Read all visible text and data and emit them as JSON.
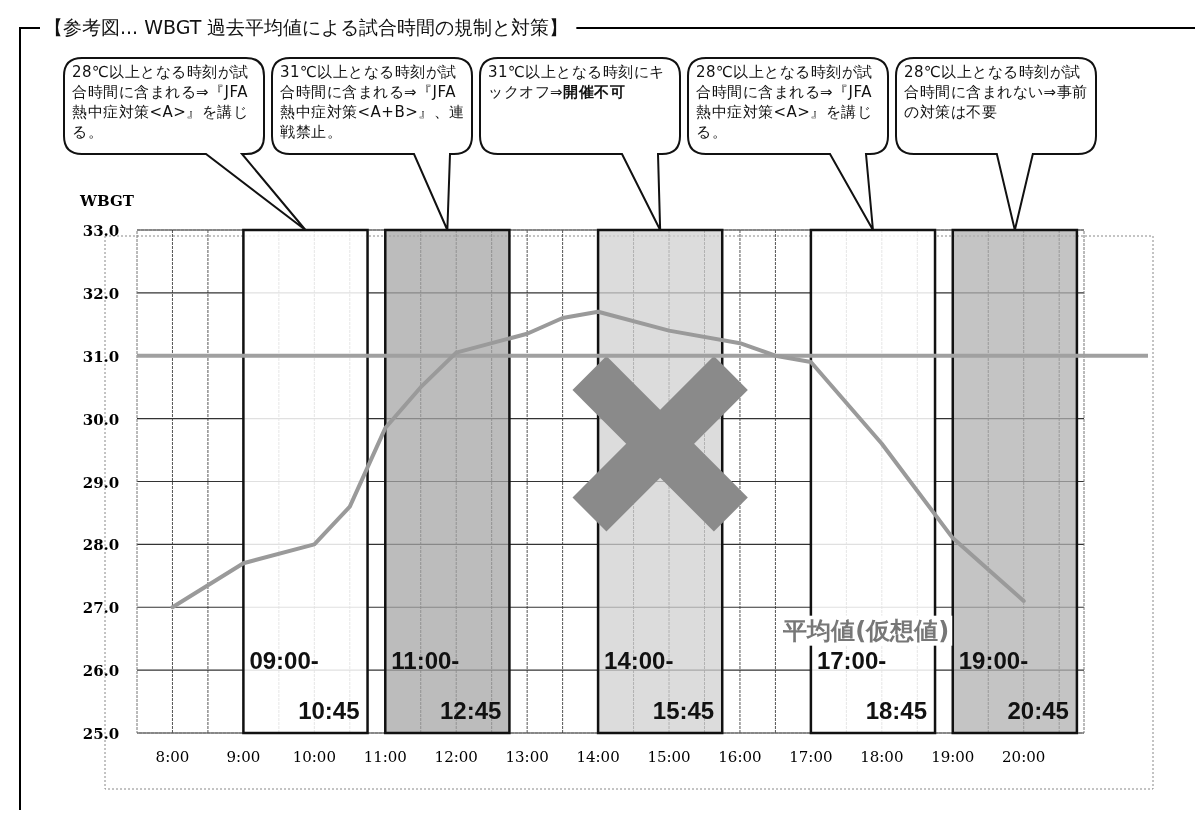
{
  "chart_data": {
    "type": "line",
    "title": "【参考図... WBGT 過去平均値による試合時間の規制と対策】",
    "ylabel": "WBGT",
    "series": [
      {
        "name": "平均値(仮想値)",
        "color": "#9a9a9a",
        "x": [
          8,
          9,
          10,
          10.5,
          11,
          11.5,
          12,
          13,
          13.5,
          14,
          15,
          16,
          16.5,
          17,
          18,
          19,
          19.5,
          20
        ],
        "values": [
          27.0,
          27.7,
          28.0,
          28.6,
          29.85,
          30.5,
          31.05,
          31.35,
          31.6,
          31.7,
          31.4,
          31.2,
          31.0,
          30.9,
          29.6,
          28.1,
          27.6,
          27.1
        ]
      }
    ],
    "xlim": [
      7.5,
      20.85
    ],
    "ylim": [
      25,
      33
    ],
    "xticks": [
      {
        "value": 8,
        "label": "8:00"
      },
      {
        "value": 8.5,
        "label": null
      },
      {
        "value": 9,
        "label": "9:00"
      },
      {
        "value": 9.5,
        "label": null
      },
      {
        "value": 10,
        "label": "10:00"
      },
      {
        "value": 10.5,
        "label": null
      },
      {
        "value": 11,
        "label": "11:00"
      },
      {
        "value": 11.5,
        "label": null
      },
      {
        "value": 12,
        "label": "12:00"
      },
      {
        "value": 12.5,
        "label": null
      },
      {
        "value": 13,
        "label": "13:00"
      },
      {
        "value": 13.5,
        "label": null
      },
      {
        "value": 14,
        "label": "14:00"
      },
      {
        "value": 14.5,
        "label": null
      },
      {
        "value": 15,
        "label": "15:00"
      },
      {
        "value": 15.5,
        "label": null
      },
      {
        "value": 16,
        "label": "16:00"
      },
      {
        "value": 16.5,
        "label": null
      },
      {
        "value": 17,
        "label": "17:00"
      },
      {
        "value": 17.5,
        "label": null
      },
      {
        "value": 18,
        "label": "18:00"
      },
      {
        "value": 18.5,
        "label": null
      },
      {
        "value": 19,
        "label": "19:00"
      },
      {
        "value": 19.5,
        "label": null
      },
      {
        "value": 20,
        "label": "20:00"
      },
      {
        "value": 20.5,
        "label": null
      }
    ],
    "yticks": [
      {
        "value": 25,
        "label": "25.0"
      },
      {
        "value": 26,
        "label": "26.0"
      },
      {
        "value": 27,
        "label": "27.0"
      },
      {
        "value": 28,
        "label": "28.0"
      },
      {
        "value": 29,
        "label": "29.0"
      },
      {
        "value": 30,
        "label": "30.0"
      },
      {
        "value": 31,
        "label": "31.0"
      },
      {
        "value": 32,
        "label": "32.0"
      },
      {
        "value": 33,
        "label": "33.0"
      }
    ],
    "grid": true,
    "ref_lines": [
      {
        "axis": "y",
        "value": 31,
        "color": "#a0a0a0"
      }
    ],
    "bands": [
      {
        "axis": "x",
        "from": 9,
        "to": 10.75,
        "label": "09:00-10:45",
        "color": "#ffffff"
      },
      {
        "axis": "x",
        "from": 11,
        "to": 12.75,
        "label": "11:00-12:45",
        "color": "#a6a6a6"
      },
      {
        "axis": "x",
        "from": 14,
        "to": 15.75,
        "label": "14:00-15:45",
        "color": "#d0d0d0"
      },
      {
        "axis": "x",
        "from": 17,
        "to": 18.75,
        "label": "17:00-18:45",
        "color": "#ffffff"
      },
      {
        "axis": "x",
        "from": 19,
        "to": 20.75,
        "label": "19:00-20:45",
        "color": "#b0b0b0"
      }
    ],
    "annotations": [
      "28℃以上となる時刻が試合時間に含まれる⇒『JFA 熱中症対策<A>』を講じる。",
      "31℃以上となる時刻が試合時間に含まれる⇒『JFA 熱中症対策<A+B>』、連戦禁止。",
      "31℃以上となる時刻にキックオフ⇒**開催不可**",
      "28℃以上となる時刻が試合時間に含まれる⇒『JFA 熱中症対策<A>』を講じる。",
      "28℃以上となる時刻が試合時間に含まれない⇒事前の対策は不要"
    ]
  }
}
